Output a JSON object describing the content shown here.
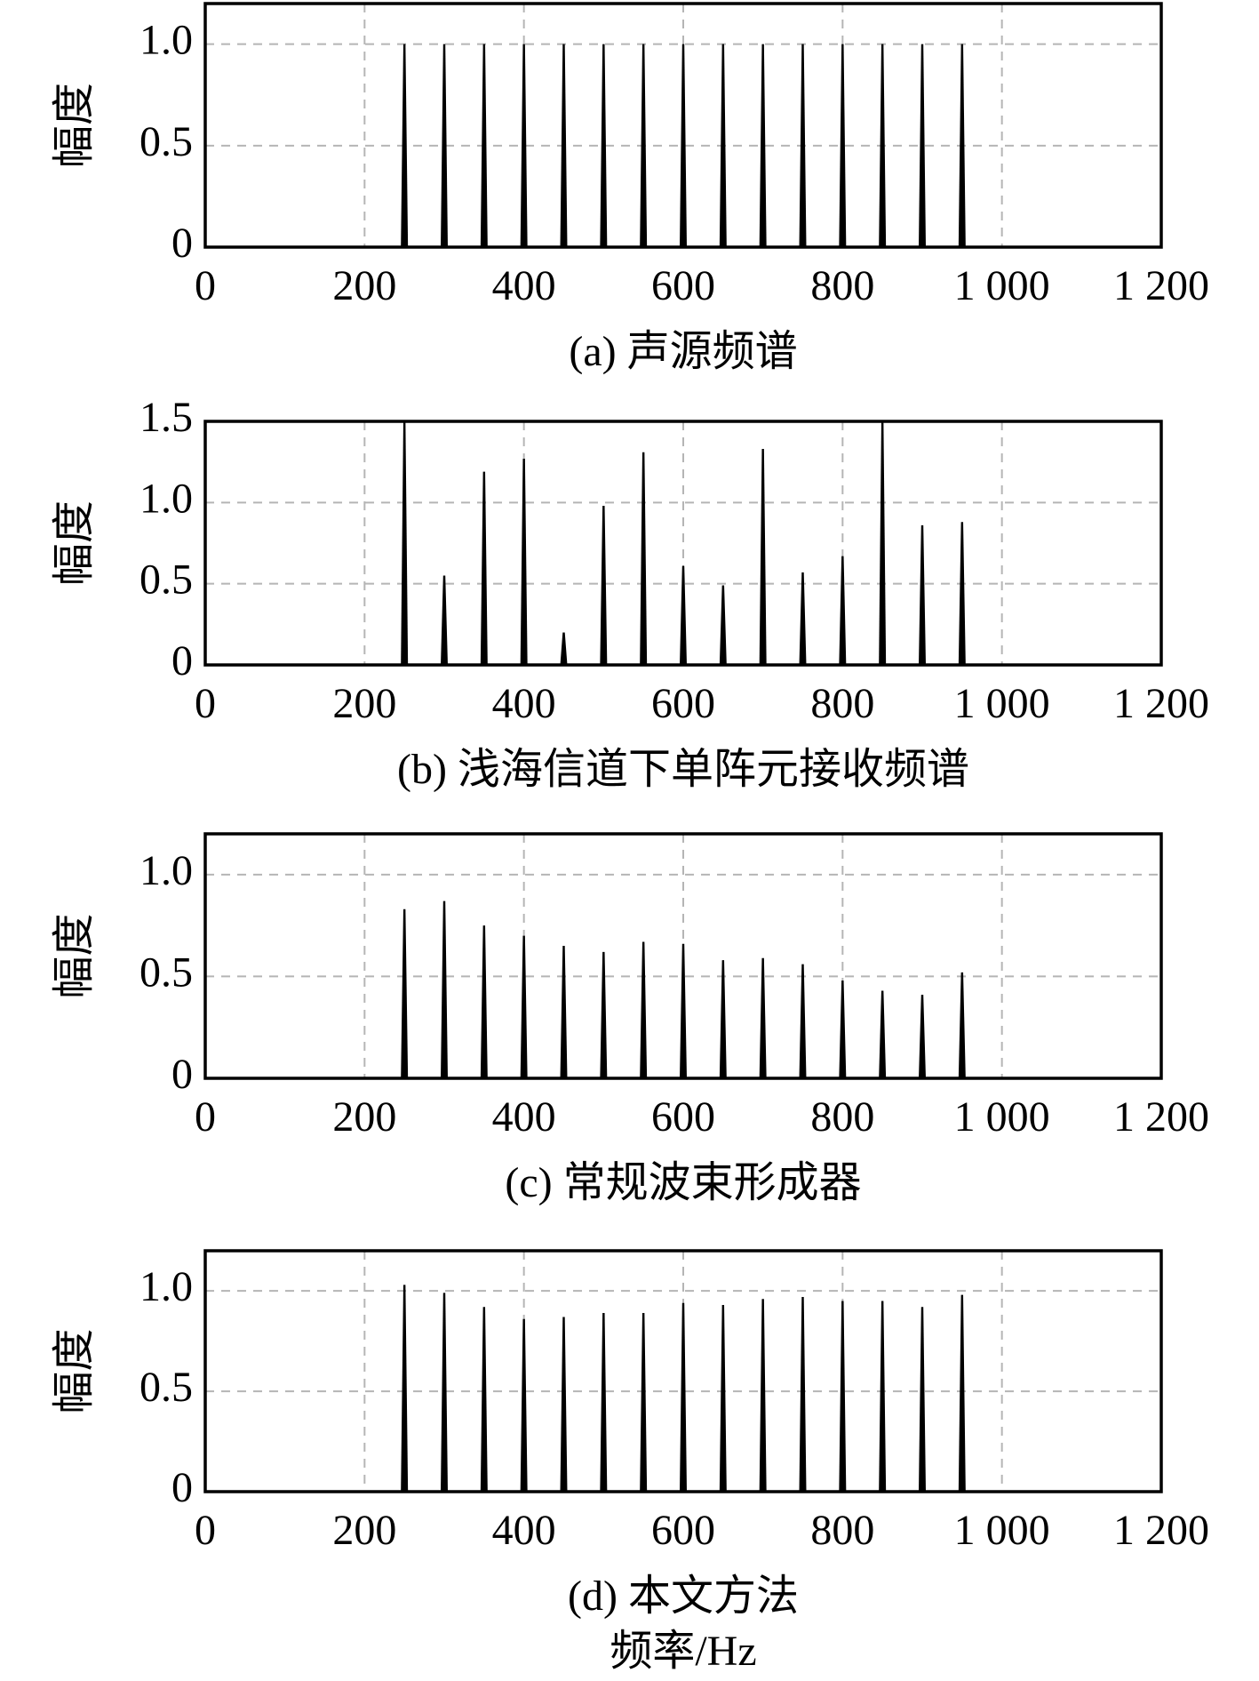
{
  "chart_data": [
    {
      "type": "stem",
      "caption": "(a) 声源频谱",
      "ylabel": "幅度",
      "color": "#000000",
      "grid": true,
      "x": [
        250,
        300,
        350,
        400,
        450,
        500,
        550,
        600,
        650,
        700,
        750,
        800,
        850,
        900,
        950
      ],
      "values": [
        1,
        1,
        1,
        1,
        1,
        1,
        1,
        1,
        1,
        1,
        1,
        1,
        1,
        1,
        1
      ],
      "xlim": [
        0,
        1200
      ],
      "xticks": [
        0,
        200,
        400,
        600,
        800,
        {
          "value": 1000,
          "label": "1 000"
        },
        {
          "value": 1200,
          "label": "1 200"
        }
      ],
      "ylim": [
        0,
        1.2
      ],
      "yticks": [
        0,
        0.5,
        {
          "value": 1,
          "label": "1.0"
        }
      ]
    },
    {
      "type": "stem",
      "caption": "(b) 浅海信道下单阵元接收频谱",
      "ylabel": "幅度",
      "color": "#000000",
      "grid": true,
      "x": [
        250,
        300,
        350,
        400,
        450,
        500,
        550,
        600,
        650,
        700,
        750,
        800,
        850,
        900,
        950
      ],
      "values": [
        1.5,
        0.55,
        1.19,
        1.27,
        0.2,
        0.98,
        1.31,
        0.61,
        0.49,
        1.33,
        0.57,
        0.67,
        1.5,
        0.86,
        0.88
      ],
      "xlim": [
        0,
        1200
      ],
      "xticks": [
        0,
        200,
        400,
        600,
        800,
        {
          "value": 1000,
          "label": "1 000"
        },
        {
          "value": 1200,
          "label": "1 200"
        }
      ],
      "ylim": [
        0,
        1.5
      ],
      "yticks": [
        0,
        0.5,
        {
          "value": 1,
          "label": "1.0"
        },
        1.5
      ]
    },
    {
      "type": "stem",
      "caption": "(c) 常规波束形成器",
      "ylabel": "幅度",
      "color": "#000000",
      "grid": true,
      "x": [
        250,
        300,
        350,
        400,
        450,
        500,
        550,
        600,
        650,
        700,
        750,
        800,
        850,
        900,
        950
      ],
      "values": [
        0.83,
        0.87,
        0.75,
        0.7,
        0.65,
        0.62,
        0.67,
        0.66,
        0.58,
        0.59,
        0.56,
        0.48,
        0.43,
        0.41,
        0.52
      ],
      "xlim": [
        0,
        1200
      ],
      "xticks": [
        0,
        200,
        400,
        600,
        800,
        {
          "value": 1000,
          "label": "1 000"
        },
        {
          "value": 1200,
          "label": "1 200"
        }
      ],
      "ylim": [
        0,
        1.2
      ],
      "yticks": [
        0,
        0.5,
        {
          "value": 1,
          "label": "1.0"
        }
      ]
    },
    {
      "type": "stem",
      "caption": "(d) 本文方法",
      "ylabel": "幅度",
      "xlabel": "频率/Hz",
      "color": "#000000",
      "grid": true,
      "x": [
        250,
        300,
        350,
        400,
        450,
        500,
        550,
        600,
        650,
        700,
        750,
        800,
        850,
        900,
        950
      ],
      "values": [
        1.03,
        0.99,
        0.92,
        0.86,
        0.87,
        0.89,
        0.89,
        0.94,
        0.93,
        0.96,
        0.97,
        0.95,
        0.95,
        0.92,
        0.98
      ],
      "xlim": [
        0,
        1200
      ],
      "xticks": [
        0,
        200,
        400,
        600,
        800,
        {
          "value": 1000,
          "label": "1 000"
        },
        {
          "value": 1200,
          "label": "1 200"
        }
      ],
      "ylim": [
        0,
        1.2
      ],
      "yticks": [
        0,
        0.5,
        {
          "value": 1,
          "label": "1.0"
        }
      ]
    }
  ]
}
